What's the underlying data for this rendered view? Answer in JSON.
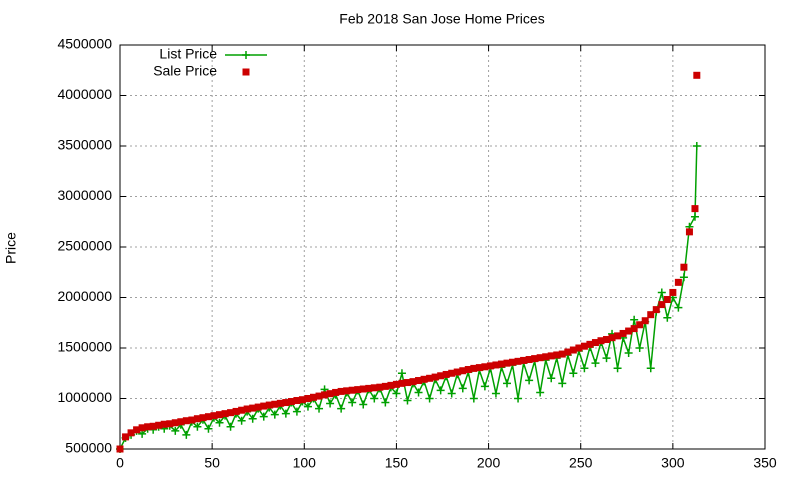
{
  "chart_data": {
    "type": "line",
    "title": "Feb 2018 San Jose Home Prices",
    "ylabel": "Price",
    "x": [
      0,
      3,
      6,
      9,
      12,
      15,
      18,
      21,
      24,
      27,
      30,
      33,
      36,
      39,
      42,
      45,
      48,
      51,
      54,
      57,
      60,
      63,
      66,
      69,
      72,
      75,
      78,
      81,
      84,
      87,
      90,
      93,
      96,
      99,
      102,
      105,
      108,
      111,
      114,
      117,
      120,
      123,
      126,
      129,
      132,
      135,
      138,
      141,
      144,
      147,
      150,
      153,
      156,
      159,
      162,
      165,
      168,
      171,
      174,
      177,
      180,
      183,
      186,
      189,
      192,
      195,
      198,
      201,
      204,
      207,
      210,
      213,
      216,
      219,
      222,
      225,
      228,
      231,
      234,
      237,
      240,
      243,
      246,
      249,
      252,
      255,
      258,
      261,
      264,
      267,
      270,
      273,
      276,
      279,
      282,
      285,
      288,
      291,
      294,
      297,
      300,
      303,
      306,
      309,
      312,
      313
    ],
    "series": [
      {
        "name": "List Price",
        "color": "#00a000",
        "marker": "plus",
        "line": true,
        "values": [
          500000,
          610000,
          640000,
          680000,
          650000,
          700000,
          690000,
          720000,
          700000,
          730000,
          680000,
          740000,
          640000,
          770000,
          720000,
          790000,
          700000,
          810000,
          760000,
          830000,
          720000,
          850000,
          780000,
          870000,
          800000,
          900000,
          820000,
          910000,
          840000,
          930000,
          850000,
          960000,
          870000,
          970000,
          920000,
          1000000,
          900000,
          1090000,
          950000,
          1040000,
          900000,
          1060000,
          960000,
          1080000,
          940000,
          1090000,
          1000000,
          1100000,
          960000,
          1110000,
          1050000,
          1250000,
          980000,
          1150000,
          1060000,
          1170000,
          1000000,
          1190000,
          1080000,
          1220000,
          1050000,
          1240000,
          1100000,
          1260000,
          1000000,
          1280000,
          1120000,
          1300000,
          1050000,
          1310000,
          1150000,
          1330000,
          1000000,
          1350000,
          1180000,
          1370000,
          1060000,
          1380000,
          1200000,
          1400000,
          1150000,
          1430000,
          1250000,
          1470000,
          1300000,
          1510000,
          1350000,
          1560000,
          1400000,
          1640000,
          1300000,
          1600000,
          1450000,
          1780000,
          1500000,
          1760000,
          1300000,
          1860000,
          2050000,
          1800000,
          2000000,
          1900000,
          2200000,
          2700000,
          2800000,
          3500000
        ]
      },
      {
        "name": "Sale Price",
        "color": "#cc0000",
        "marker": "square",
        "line": false,
        "values": [
          500000,
          620000,
          660000,
          690000,
          710000,
          720000,
          725000,
          735000,
          745000,
          750000,
          760000,
          770000,
          780000,
          787000,
          800000,
          810000,
          820000,
          830000,
          840000,
          850000,
          860000,
          872000,
          884000,
          896000,
          905000,
          915000,
          925000,
          935000,
          943000,
          952000,
          960000,
          970000,
          980000,
          988000,
          1000000,
          1012000,
          1024000,
          1036000,
          1048000,
          1060000,
          1070000,
          1076000,
          1082000,
          1088000,
          1094000,
          1100000,
          1106000,
          1112000,
          1120000,
          1130000,
          1140000,
          1150000,
          1158000,
          1167000,
          1178000,
          1190000,
          1200000,
          1212000,
          1225000,
          1238000,
          1250000,
          1262000,
          1275000,
          1287000,
          1298000,
          1306000,
          1314000,
          1323000,
          1332000,
          1341000,
          1350000,
          1359000,
          1368000,
          1377000,
          1386000,
          1395000,
          1404000,
          1413000,
          1422000,
          1431000,
          1440000,
          1460000,
          1480000,
          1500000,
          1518000,
          1536000,
          1554000,
          1572000,
          1584000,
          1602000,
          1620000,
          1644000,
          1668000,
          1692000,
          1730000,
          1770000,
          1830000,
          1880000,
          1930000,
          1980000,
          2050000,
          2150000,
          2300000,
          2650000,
          2880000,
          4200000
        ]
      }
    ],
    "xlim": [
      0,
      350
    ],
    "xticks": [
      0,
      50,
      100,
      150,
      200,
      250,
      300,
      350
    ],
    "ylim": [
      500000,
      4500000
    ],
    "yticks": [
      500000,
      1000000,
      1500000,
      2000000,
      2500000,
      3000000,
      3500000,
      4000000,
      4500000
    ],
    "grid": true,
    "legend": "top left"
  }
}
